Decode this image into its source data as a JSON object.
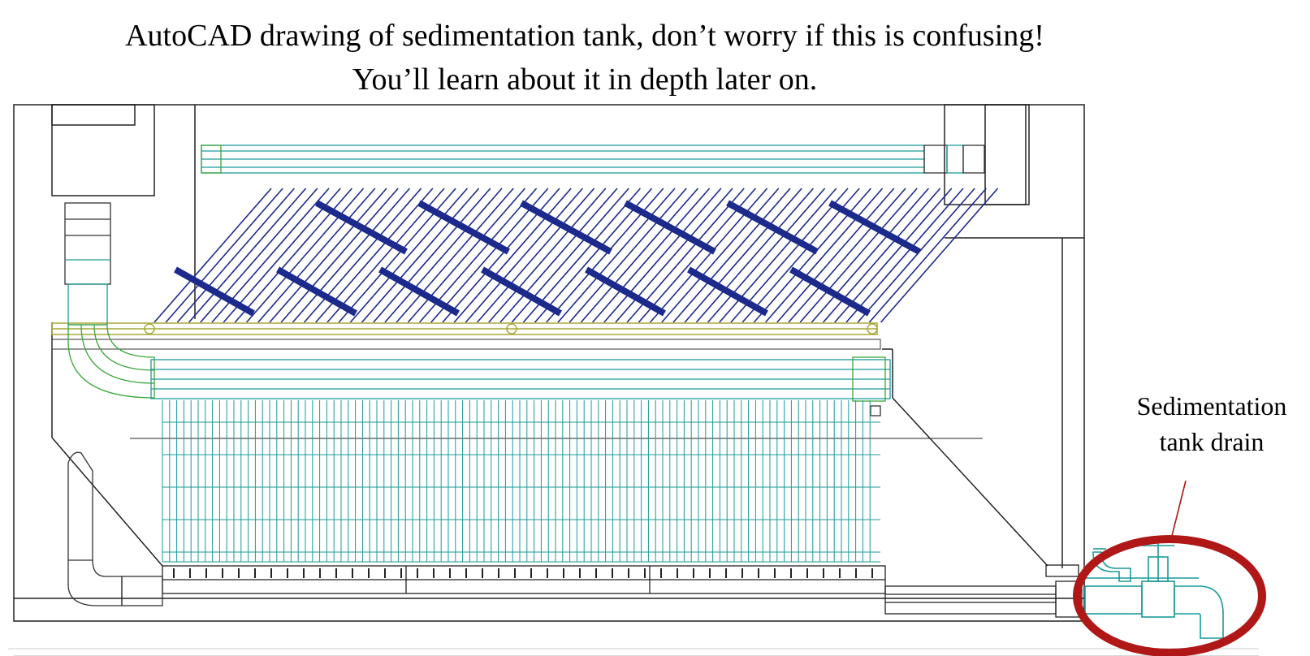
{
  "title": {
    "line1": "AutoCAD drawing of sedimentation tank, don’t worry if this is confusing!",
    "line2": "You’ll learn about it in depth later on."
  },
  "callout": {
    "line1": "Sedimentation",
    "line2": "tank drain"
  },
  "colors": {
    "background": "#ffffff",
    "outline": "#222222",
    "pipe_teal": "#1a9a9a",
    "pipe_green": "#3aa63a",
    "plate_navy": "#1c2a8c",
    "manifold_olive": "#a8a838",
    "highlight_red": "#b01818"
  },
  "icons": [
    "drain-valve-icon",
    "faucet-icon",
    "highlight-ellipse"
  ]
}
